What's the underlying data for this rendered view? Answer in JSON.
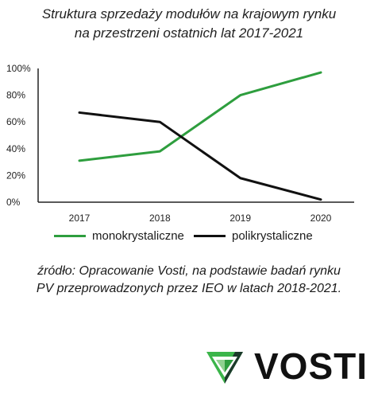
{
  "title": {
    "line1": "Struktura sprzedaży modułów na krajowym rynku",
    "line2": "na przestrzeni ostatnich lat 2017-2021"
  },
  "chart_data": {
    "type": "line",
    "title": "Struktura sprzedaży modułów na krajowym rynku na przestrzeni ostatnich lat 2017-2021",
    "categories": [
      "2017",
      "2018",
      "2019",
      "2020"
    ],
    "series": [
      {
        "name": "monokrystaliczne",
        "color": "#2e9e3e",
        "values": [
          31,
          38,
          80,
          97
        ]
      },
      {
        "name": "polikrystaliczne",
        "color": "#111111",
        "values": [
          67,
          60,
          18,
          2
        ]
      }
    ],
    "yticks": [
      "0%",
      "20%",
      "40%",
      "60%",
      "80%",
      "100%"
    ],
    "ylim": [
      0,
      100
    ],
    "grid": false,
    "legend_position": "bottom"
  },
  "legend": {
    "item1": "monokrystaliczne",
    "item2": "polikrystaliczne"
  },
  "source": {
    "line1": "źródło: Opracowanie Vosti, na podstawie badań rynku",
    "line2": "PV przeprowadzonych przez IEO w latach 2018-2021."
  },
  "brand": {
    "name": "VOSTI",
    "logo_icon": "vosti-shield-logo-icon",
    "green": "#3bb54a",
    "dark": "#1b3a2a"
  }
}
